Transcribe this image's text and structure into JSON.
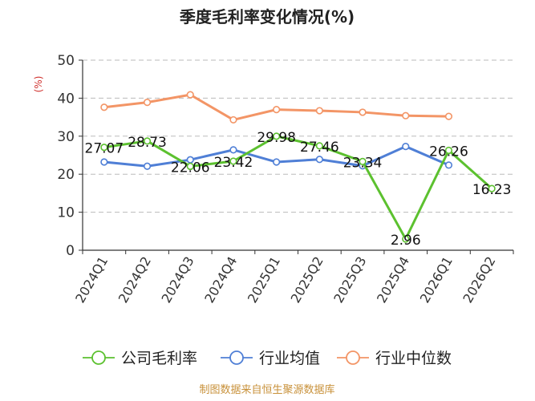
{
  "chart_data": {
    "type": "line",
    "title": "季度毛利率变化情况(%)",
    "ylabel": "(%)",
    "xlabel": "",
    "ylim": [
      0,
      50
    ],
    "yticks": [
      0,
      10,
      20,
      30,
      40,
      50
    ],
    "grid": true,
    "legend_position": "bottom",
    "categories": [
      "2024Q1",
      "2024Q2",
      "2024Q3",
      "2024Q4",
      "2025Q1",
      "2025Q2",
      "2025Q3",
      "2025Q4",
      "2026Q1",
      "2026Q2"
    ],
    "series": [
      {
        "name": "公司毛利率",
        "color": "#5cc12f",
        "values": [
          27.07,
          28.73,
          22.06,
          23.42,
          29.98,
          27.46,
          23.34,
          2.96,
          26.26,
          16.23
        ],
        "labels": [
          "27.07",
          "28.73",
          "22.06",
          "23.42",
          "29.98",
          "27.46",
          "23.34",
          "2.96",
          "26.26",
          "16.23"
        ]
      },
      {
        "name": "行业均值",
        "color": "#4f7fd6",
        "values": [
          23.2,
          22.1,
          23.8,
          26.4,
          23.2,
          23.9,
          22.2,
          27.3,
          22.4,
          null
        ]
      },
      {
        "name": "行业中位数",
        "color": "#f39566",
        "values": [
          37.6,
          38.9,
          40.9,
          34.3,
          37.0,
          36.7,
          36.3,
          35.4,
          35.2,
          null
        ]
      }
    ],
    "source": "制图数据来自恒生聚源数据库"
  },
  "colors": {
    "axis": "#333333",
    "grid": "#bbbbbb",
    "ylabel": "#d0312d",
    "source": "#c8913a"
  }
}
